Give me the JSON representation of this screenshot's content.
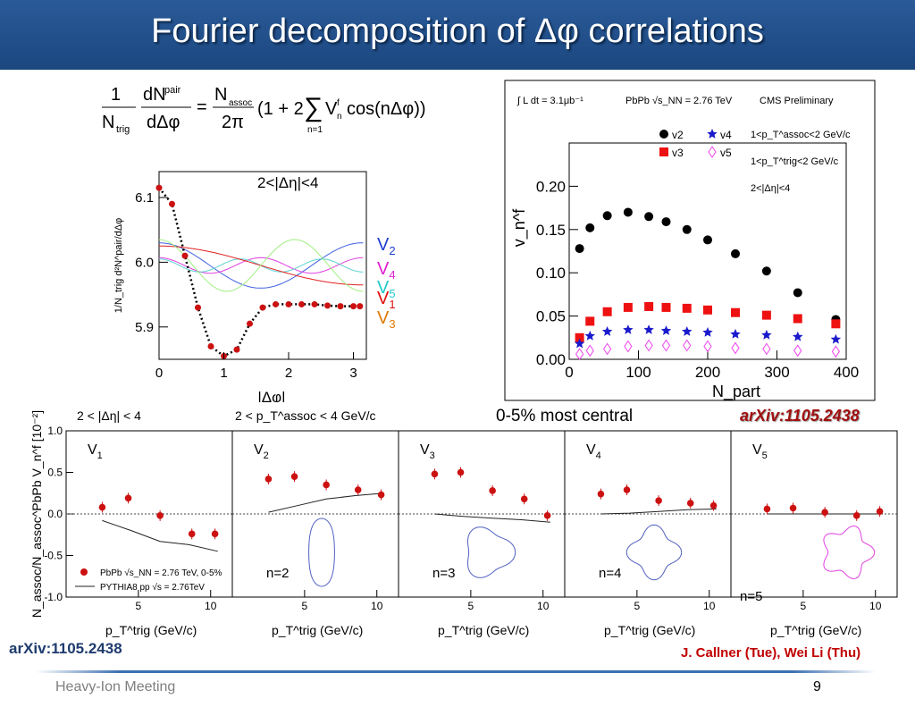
{
  "title": "Fourier decomposition of Δφ correlations",
  "footer": {
    "meeting": "Heavy-Ion Meeting",
    "page": "9",
    "arxiv_left": "arXiv:1105.2438",
    "arxiv_right": "arXiv:1105.2438",
    "authors": "J. Callner (Tue), Wei Li (Thu)"
  },
  "central_label": "0-5% most central",
  "chart_data": [
    {
      "type": "line",
      "id": "dphi-correlation",
      "annotation": "2<|Δη|<4",
      "xlabel": "|Δφ|",
      "ylabel": "1/N_trig d²N^pair/dΔφ",
      "xlim": [
        0,
        3.2
      ],
      "ylim": [
        5.85,
        6.14
      ],
      "xticks": [
        0,
        1,
        2,
        3
      ],
      "yticks": [
        5.9,
        6.0,
        6.1
      ],
      "points": {
        "x": [
          0.0,
          0.2,
          0.4,
          0.6,
          0.8,
          1.0,
          1.2,
          1.4,
          1.6,
          1.8,
          2.0,
          2.2,
          2.4,
          2.6,
          2.8,
          3.0,
          3.1
        ],
        "y": [
          6.115,
          6.09,
          6.01,
          5.93,
          5.87,
          5.855,
          5.865,
          5.905,
          5.93,
          5.935,
          5.935,
          5.935,
          5.935,
          5.933,
          5.932,
          5.932,
          5.932
        ]
      },
      "harmonic_labels": [
        {
          "text": "V",
          "sub": "2",
          "color": "#1f3fd0"
        },
        {
          "text": "V",
          "sub": "4",
          "color": "#e01fd0"
        },
        {
          "text": "V",
          "sub": "5",
          "color": "#20c8c8"
        },
        {
          "text": "V",
          "sub": "1",
          "color": "#e01010"
        },
        {
          "text": "V",
          "sub": "3",
          "color": "#e07a00"
        }
      ]
    },
    {
      "type": "scatter",
      "id": "vn-vs-npart",
      "header_left": "∫ L dt = 3.1μb⁻¹",
      "header_mid": "PbPb √s_NN = 2.76 TeV",
      "header_right": "CMS Preliminary",
      "cuts": [
        "1<p_T^assoc<2 GeV/c",
        "1<p_T^trig<2 GeV/c",
        "2<|Δη|<4"
      ],
      "xlabel": "N_part",
      "ylabel": "v_n^f",
      "xlim": [
        0,
        400
      ],
      "ylim": [
        0,
        0.25
      ],
      "xticks": [
        0,
        100,
        200,
        300,
        400
      ],
      "yticks": [
        0.0,
        0.05,
        0.1,
        0.15,
        0.2
      ],
      "x": [
        15,
        30,
        55,
        85,
        115,
        140,
        170,
        200,
        240,
        285,
        330,
        385
      ],
      "series": [
        {
          "name": "v2",
          "color": "#000000",
          "marker": "circle",
          "values": [
            0.128,
            0.152,
            0.166,
            0.17,
            0.165,
            0.159,
            0.15,
            0.138,
            0.122,
            0.102,
            0.077,
            0.046
          ]
        },
        {
          "name": "v3",
          "color": "#ee1111",
          "marker": "square",
          "values": [
            0.025,
            0.044,
            0.055,
            0.06,
            0.061,
            0.06,
            0.059,
            0.057,
            0.054,
            0.051,
            0.047,
            0.041
          ]
        },
        {
          "name": "v4",
          "color": "#1a1acc",
          "marker": "star",
          "values": [
            0.018,
            0.027,
            0.032,
            0.034,
            0.034,
            0.033,
            0.032,
            0.031,
            0.029,
            0.028,
            0.026,
            0.023
          ]
        },
        {
          "name": "v5",
          "color": "#ee44ee",
          "marker": "diamond",
          "values": [
            0.006,
            0.01,
            0.012,
            0.015,
            0.016,
            0.016,
            0.016,
            0.015,
            0.013,
            0.012,
            0.01,
            0.009
          ]
        }
      ]
    },
    {
      "type": "scatter",
      "id": "vn-vs-pt",
      "header1": "2 < |Δη| < 4",
      "header2": "2 < p_T^assoc < 4 GeV/c",
      "ylabel": "N_assoc/N_assoc^PbPb V_n^f [10⁻²]",
      "xlabel": "p_T^trig (GeV/c)",
      "xlim": [
        0,
        11.5
      ],
      "ylim": [
        -1.0,
        1.0
      ],
      "yticks": [
        -1.0,
        -0.5,
        0.0,
        0.5,
        1.0
      ],
      "xticks": [
        5,
        10
      ],
      "legend": [
        "PbPb √s_NN = 2.76 TeV, 0-5%",
        "PYTHIA8 pp √s = 2.76TeV"
      ],
      "panels": [
        {
          "label": "V",
          "sub": "1",
          "n_label": "",
          "x": [
            2.5,
            4.3,
            6.5,
            8.7,
            10.3
          ],
          "y": [
            0.08,
            0.19,
            -0.02,
            -0.24,
            -0.24
          ],
          "pythia": [
            [
              2.5,
              -0.08
            ],
            [
              4.5,
              -0.2
            ],
            [
              6.5,
              -0.33
            ],
            [
              8.5,
              -0.37
            ],
            [
              10.5,
              -0.45
            ]
          ]
        },
        {
          "label": "V",
          "sub": "2",
          "n_label": "n=2",
          "x": [
            2.5,
            4.3,
            6.5,
            8.7,
            10.3
          ],
          "y": [
            0.42,
            0.45,
            0.35,
            0.29,
            0.23
          ],
          "pythia": [
            [
              2.5,
              0.02
            ],
            [
              4.5,
              0.1
            ],
            [
              6.5,
              0.18
            ],
            [
              8.5,
              0.22
            ],
            [
              10.5,
              0.25
            ]
          ]
        },
        {
          "label": "V",
          "sub": "3",
          "n_label": "n=3",
          "x": [
            2.5,
            4.3,
            6.5,
            8.7,
            10.3
          ],
          "y": [
            0.48,
            0.5,
            0.28,
            0.18,
            -0.02
          ],
          "pythia": [
            [
              2.5,
              0.0
            ],
            [
              4.5,
              -0.03
            ],
            [
              6.5,
              -0.05
            ],
            [
              8.5,
              -0.07
            ],
            [
              10.5,
              -0.1
            ]
          ]
        },
        {
          "label": "V",
          "sub": "4",
          "n_label": "n=4",
          "x": [
            2.5,
            4.3,
            6.5,
            8.7,
            10.3
          ],
          "y": [
            0.24,
            0.29,
            0.16,
            0.13,
            0.1
          ],
          "pythia": [
            [
              2.5,
              0.0
            ],
            [
              4.5,
              0.01
            ],
            [
              6.5,
              0.03
            ],
            [
              8.5,
              0.05
            ],
            [
              10.5,
              0.06
            ]
          ]
        },
        {
          "label": "V",
          "sub": "5",
          "n_label": "n=5",
          "x": [
            2.5,
            4.3,
            6.5,
            8.7,
            10.3
          ],
          "y": [
            0.06,
            0.07,
            0.02,
            -0.02,
            0.03
          ],
          "pythia": [
            [
              2.5,
              0.0
            ],
            [
              4.5,
              0.0
            ],
            [
              6.5,
              0.0
            ],
            [
              8.5,
              0.0
            ],
            [
              10.5,
              0.0
            ]
          ]
        }
      ]
    }
  ]
}
